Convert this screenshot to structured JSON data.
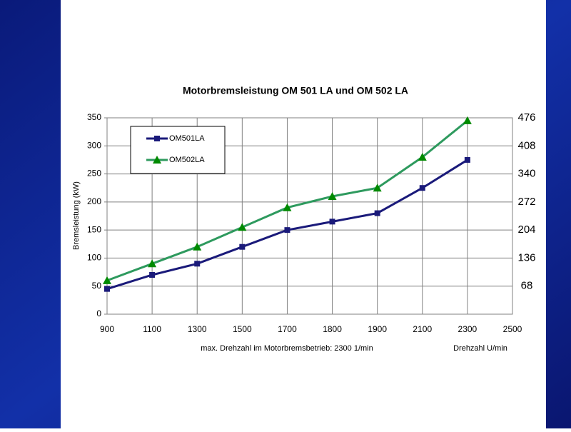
{
  "chart_data": {
    "type": "line",
    "title": "Motorbremsleistung OM 501 LA und OM 502 LA",
    "y_label": "Bremsleistung (kW)",
    "annotations": [
      "max. Drehzahl im Motorbremsbetrieb: 2300 1/min",
      "Drehzahl U/min"
    ],
    "categories": [
      "900",
      "1100",
      "1300",
      "1500",
      "1700",
      "1800",
      "1900",
      "2100",
      "2300",
      "2500"
    ],
    "series": [
      {
        "name": "OM501LA",
        "color": "#1a1a7a",
        "marker": "square",
        "values": [
          45,
          70,
          90,
          120,
          150,
          165,
          180,
          225,
          275,
          null
        ]
      },
      {
        "name": "OM502LA",
        "color": "#2e9a5e",
        "marker_color": "#008a00",
        "marker": "triangle",
        "values": [
          60,
          90,
          120,
          155,
          190,
          210,
          225,
          280,
          345,
          null
        ]
      }
    ],
    "ylim": [
      0,
      350
    ],
    "yticks": [
      0,
      50,
      100,
      150,
      200,
      250,
      300,
      350
    ],
    "y2lim": [
      0,
      476
    ],
    "y2ticks": [
      68,
      136,
      204,
      272,
      340,
      408,
      476
    ],
    "grid": true,
    "legend": "top-left"
  }
}
